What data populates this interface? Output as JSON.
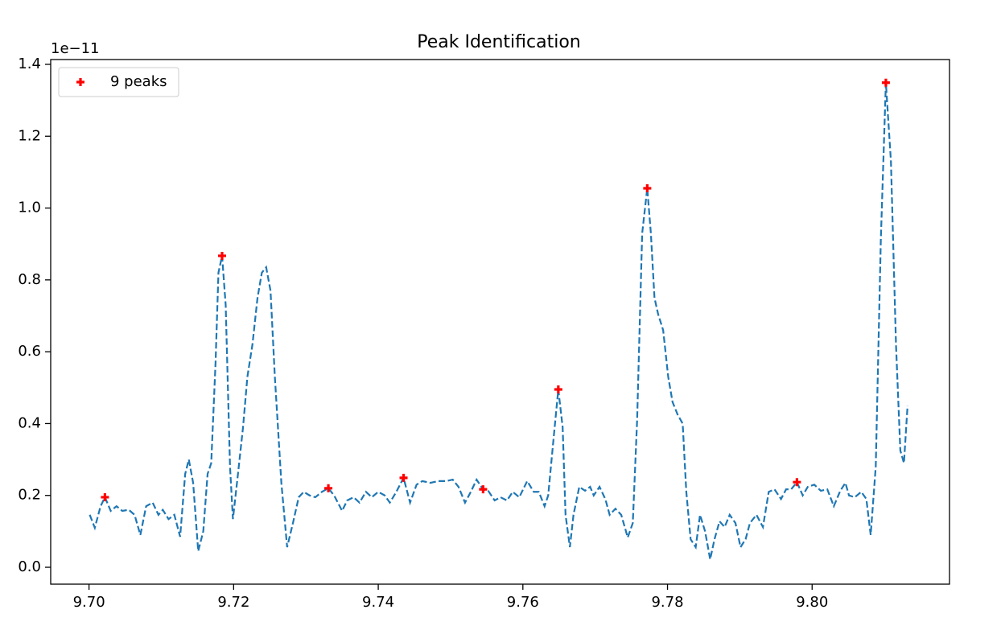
{
  "chart_data": {
    "type": "line",
    "title": "Peak Identification",
    "y_offset_label": "1e−11",
    "xlim": [
      9.6947,
      9.819
    ],
    "ylim": [
      -0.047,
      1.4134
    ],
    "xticks": [
      {
        "value": 9.7,
        "label": "9.70"
      },
      9.72,
      9.74,
      9.76,
      9.78,
      {
        "value": 9.8,
        "label": "9.80"
      }
    ],
    "yticks": [
      {
        "value": 0,
        "label": "0.0"
      },
      0.2,
      0.4,
      0.6,
      0.8,
      {
        "value": 1,
        "label": "1.0"
      },
      1.2,
      1.4
    ],
    "grid": false,
    "legend_loc": "upper left",
    "series": [
      {
        "color": "#1f77b4",
        "style": "dashed",
        "x": [
          9.7001,
          9.7008,
          9.7016,
          9.7022,
          9.703,
          9.7038,
          9.7046,
          9.7055,
          9.7063,
          9.7071,
          9.7079,
          9.7088,
          9.7096,
          9.7102,
          9.711,
          9.7118,
          9.7126,
          9.7133,
          9.7138,
          9.7144,
          9.7151,
          9.7158,
          9.7164,
          9.7169,
          9.7175,
          9.7179,
          9.7184,
          9.7189,
          9.7195,
          9.7199,
          9.7206,
          9.7213,
          9.7219,
          9.7226,
          9.7233,
          9.7239,
          9.7245,
          9.7251,
          9.7257,
          9.7266,
          9.7274,
          9.7282,
          9.729,
          9.7297,
          9.7305,
          9.7313,
          9.7322,
          9.7331,
          9.7339,
          9.735,
          9.7357,
          9.7366,
          9.7374,
          9.7383,
          9.7391,
          9.74,
          9.7409,
          9.7416,
          9.7425,
          9.7435,
          9.7444,
          9.7453,
          9.7461,
          9.7472,
          9.7483,
          9.7494,
          9.7503,
          9.7511,
          9.752,
          9.7528,
          9.7536,
          9.7545,
          9.7552,
          9.7561,
          9.7569,
          9.7578,
          9.7586,
          9.7595,
          9.7606,
          9.7615,
          9.7622,
          9.763,
          9.7635,
          9.7643,
          9.7649,
          9.7655,
          9.7659,
          9.7665,
          9.767,
          9.7678,
          9.7686,
          9.7693,
          9.7698,
          9.7706,
          9.7714,
          9.772,
          9.7728,
          9.7736,
          9.7745,
          9.7752,
          9.7758,
          9.7765,
          9.7772,
          9.7777,
          9.7782,
          9.7787,
          9.7794,
          9.7801,
          9.7807,
          9.7814,
          9.7821,
          9.7826,
          9.7832,
          9.7839,
          9.7845,
          9.7852,
          9.7859,
          9.7865,
          9.7872,
          9.7879,
          9.7886,
          9.7894,
          9.7901,
          9.7908,
          9.7914,
          9.7923,
          9.7932,
          9.794,
          9.7948,
          9.7957,
          9.7964,
          9.7971,
          9.7979,
          9.7987,
          9.7994,
          9.8003,
          9.8012,
          9.8021,
          9.803,
          9.8039,
          9.8046,
          9.8051,
          9.8059,
          9.8068,
          9.8075,
          9.8081,
          9.8088,
          9.8095,
          9.8102,
          9.8109,
          9.8116,
          9.8122,
          9.8127,
          9.8132
        ],
        "values": [
          0.146,
          0.11,
          0.17,
          0.195,
          0.157,
          0.17,
          0.157,
          0.16,
          0.146,
          0.09,
          0.17,
          0.18,
          0.146,
          0.16,
          0.134,
          0.146,
          0.085,
          0.26,
          0.3,
          0.235,
          0.045,
          0.1,
          0.26,
          0.29,
          0.57,
          0.82,
          0.867,
          0.73,
          0.28,
          0.134,
          0.26,
          0.39,
          0.53,
          0.62,
          0.75,
          0.82,
          0.835,
          0.77,
          0.53,
          0.235,
          0.056,
          0.123,
          0.195,
          0.21,
          0.2,
          0.195,
          0.21,
          0.22,
          0.2,
          0.157,
          0.186,
          0.195,
          0.18,
          0.21,
          0.195,
          0.21,
          0.2,
          0.18,
          0.21,
          0.249,
          0.18,
          0.23,
          0.24,
          0.235,
          0.24,
          0.24,
          0.244,
          0.224,
          0.18,
          0.21,
          0.244,
          0.217,
          0.213,
          0.186,
          0.195,
          0.186,
          0.21,
          0.195,
          0.24,
          0.21,
          0.21,
          0.17,
          0.2,
          0.37,
          0.495,
          0.39,
          0.146,
          0.056,
          0.146,
          0.224,
          0.213,
          0.224,
          0.2,
          0.224,
          0.19,
          0.146,
          0.163,
          0.146,
          0.083,
          0.123,
          0.41,
          0.93,
          1.055,
          0.93,
          0.75,
          0.705,
          0.66,
          0.53,
          0.46,
          0.425,
          0.4,
          0.21,
          0.078,
          0.056,
          0.146,
          0.1,
          0.022,
          0.078,
          0.128,
          0.112,
          0.146,
          0.123,
          0.056,
          0.078,
          0.123,
          0.146,
          0.112,
          0.21,
          0.217,
          0.19,
          0.217,
          0.217,
          0.237,
          0.2,
          0.224,
          0.23,
          0.213,
          0.217,
          0.17,
          0.213,
          0.235,
          0.2,
          0.195,
          0.21,
          0.19,
          0.09,
          0.28,
          0.91,
          1.349,
          1.13,
          0.62,
          0.325,
          0.29,
          0.45
        ]
      },
      {
        "name": "9 peaks",
        "color": "#ff0000",
        "marker": "plus",
        "x": [
          9.7022,
          9.7184,
          9.7331,
          9.7435,
          9.7545,
          9.7649,
          9.7772,
          9.7979,
          9.8102
        ],
        "values": [
          0.195,
          0.867,
          0.22,
          0.249,
          0.217,
          0.495,
          1.055,
          0.237,
          1.349
        ]
      }
    ]
  }
}
